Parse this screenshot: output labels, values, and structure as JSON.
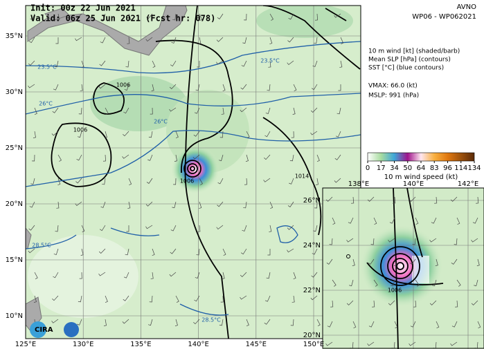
{
  "header": {
    "init": "Init:  00z 22 Jun 2021",
    "valid": "Valid: 06z 25 Jun 2021 (Fcst hr: 078)",
    "model": "AVNO",
    "storm": "WP06 - WP062021"
  },
  "legend": {
    "lines": [
      "10 m wind [kt] (shaded/barb)",
      "Mean SLP [hPa] (contours)",
      "SST [°C] (blue contours)"
    ],
    "vmax": "VMAX:  66.0 (kt)",
    "mslp": "MSLP:  991 (hPa)"
  },
  "colorbar": {
    "ticks": [
      "0",
      "17",
      "34",
      "50",
      "64",
      "83",
      "96",
      "114",
      "134"
    ],
    "label": "10 m wind speed (kt)"
  },
  "map": {
    "lat_labels": [
      "35°N",
      "30°N",
      "25°N",
      "20°N",
      "15°N",
      "10°N"
    ],
    "lon_labels": [
      "125°E",
      "130°E",
      "135°E",
      "140°E",
      "145°E",
      "150°E"
    ],
    "contour_labels": [
      "1006",
      "1006",
      "1006",
      "1014",
      "23.5°C",
      "23.5°C",
      "26°C",
      "26°C",
      "28.5°C",
      "28.5°C"
    ]
  },
  "inset": {
    "lat_labels": [
      "26°N",
      "24°N",
      "22°N",
      "20°N"
    ],
    "lon_labels": [
      "138°E",
      "140°E",
      "142°E"
    ],
    "contour_labels": [
      "1006"
    ]
  },
  "logo": "CIRA"
}
